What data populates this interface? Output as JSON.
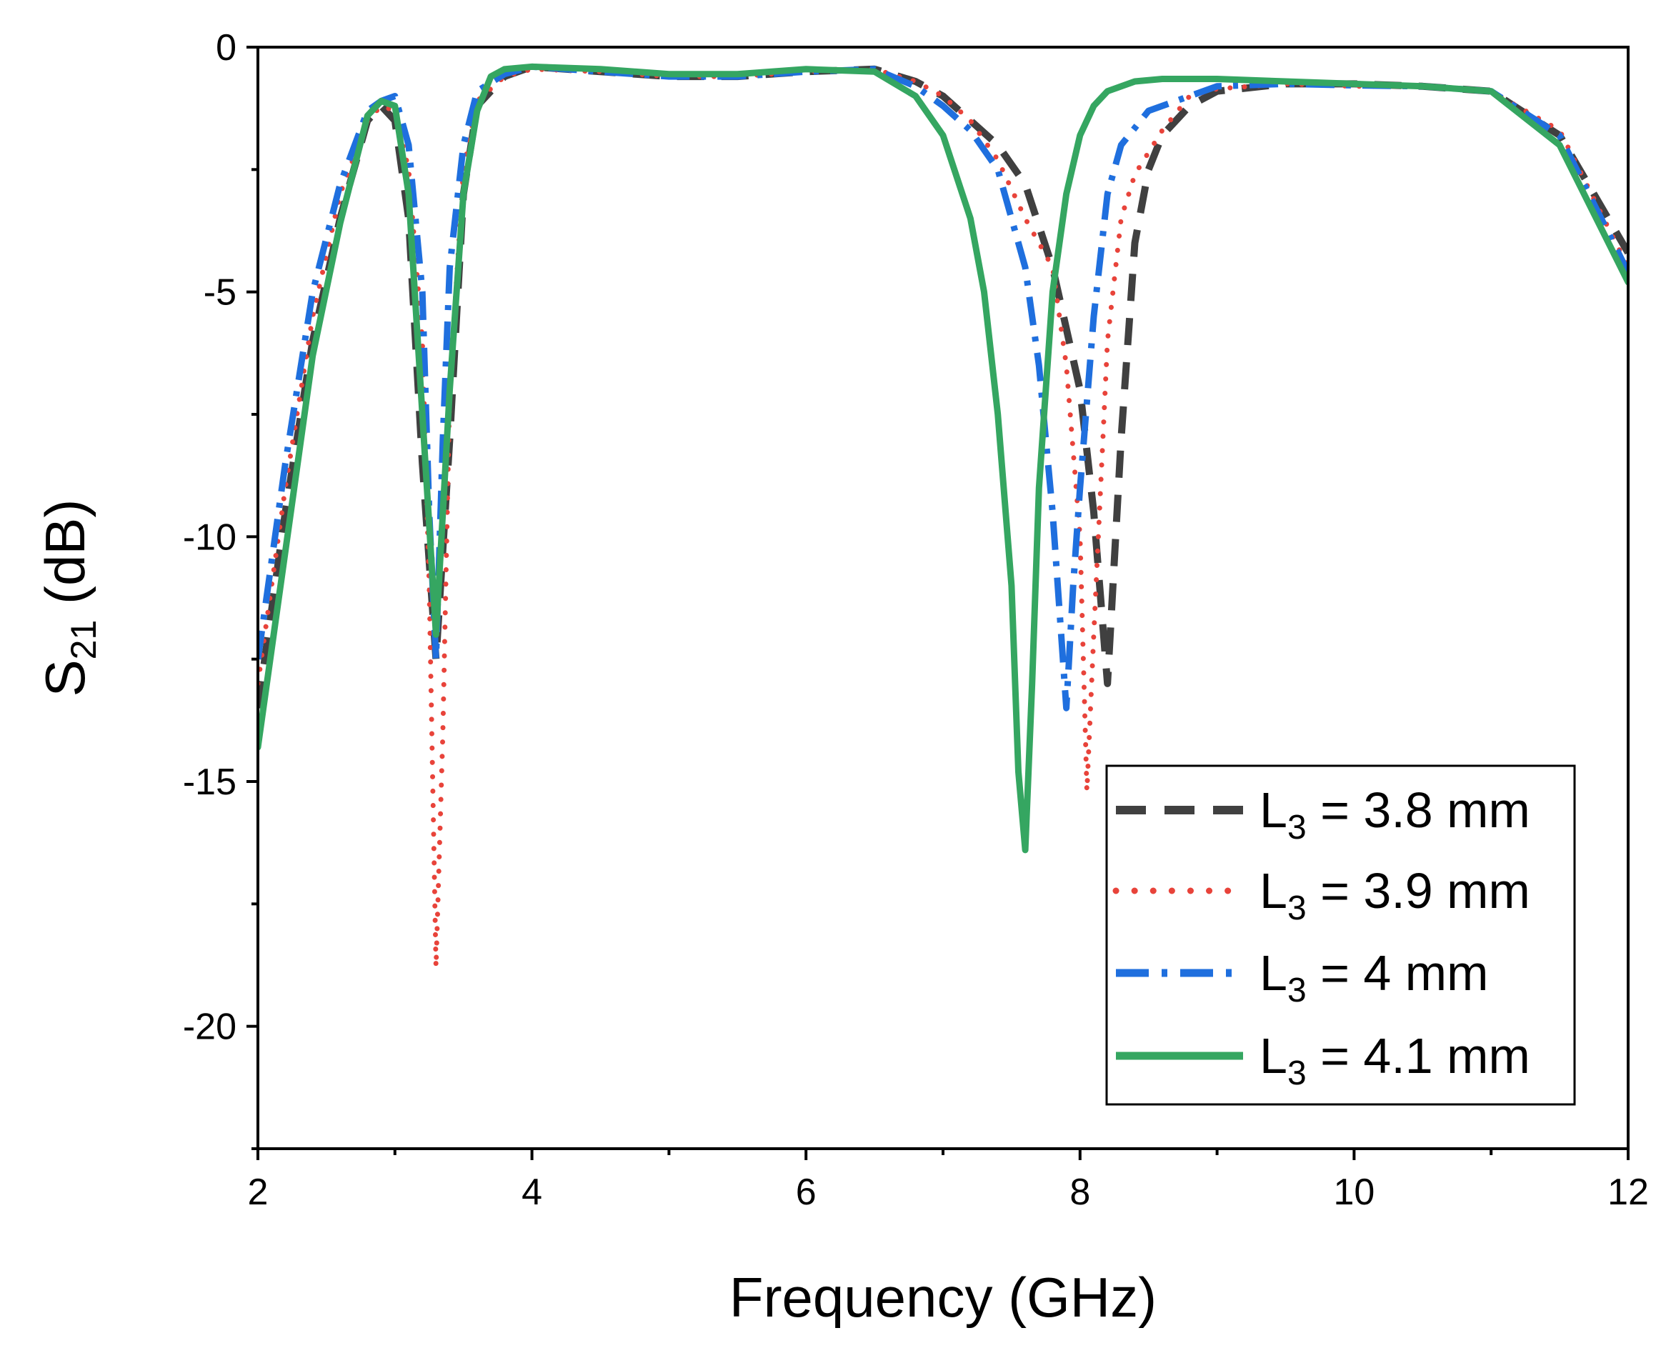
{
  "chart_data": {
    "type": "line",
    "title": "",
    "xlabel": "Frequency (GHz)",
    "ylabel": {
      "main": "S",
      "subscript": "21",
      "suffix": " (dB)"
    },
    "xlim": [
      2,
      12
    ],
    "ylim": [
      -22.5,
      0
    ],
    "x_major_ticks": [
      2,
      4,
      6,
      8,
      10,
      12
    ],
    "x_minor_ticks": [
      3,
      5,
      7,
      9,
      11
    ],
    "y_major_ticks": [
      0,
      -5,
      -10,
      -15,
      -20
    ],
    "y_minor_ticks": [
      -2.5,
      -7.5,
      -12.5,
      -17.5,
      -22.5
    ],
    "x_tick_labels": [
      "2",
      "4",
      "6",
      "8",
      "10",
      "12"
    ],
    "y_tick_labels": [
      "0",
      "-5",
      "-10",
      "-15",
      "-20"
    ],
    "legend_position": "bottom-right",
    "series": [
      {
        "name": "L3 = 3.8 mm",
        "label_parts": {
          "main": "L",
          "subscript": "3",
          "suffix": " = 3.8 mm"
        },
        "color": "#404040",
        "style": "dash",
        "x": [
          2.0,
          2.2,
          2.4,
          2.6,
          2.8,
          2.9,
          3.0,
          3.1,
          3.2,
          3.3,
          3.4,
          3.5,
          3.6,
          3.8,
          4.0,
          4.5,
          5.0,
          5.5,
          6.0,
          6.5,
          6.8,
          7.0,
          7.2,
          7.4,
          7.6,
          7.8,
          8.0,
          8.1,
          8.2,
          8.3,
          8.4,
          8.5,
          8.6,
          8.8,
          9.0,
          9.5,
          10.0,
          10.5,
          11.0,
          11.5,
          12.0
        ],
        "y": [
          -13.5,
          -9.5,
          -6.0,
          -3.5,
          -1.5,
          -1.2,
          -1.5,
          -3.5,
          -8.5,
          -12.5,
          -8.0,
          -3.0,
          -1.2,
          -0.6,
          -0.4,
          -0.5,
          -0.6,
          -0.6,
          -0.5,
          -0.45,
          -0.7,
          -1.0,
          -1.5,
          -2.0,
          -2.8,
          -4.5,
          -7.0,
          -9.5,
          -13.0,
          -8.0,
          -4.0,
          -2.5,
          -1.8,
          -1.2,
          -0.9,
          -0.75,
          -0.75,
          -0.8,
          -0.9,
          -1.8,
          -4.2
        ]
      },
      {
        "name": "L3 = 3.9 mm",
        "label_parts": {
          "main": "L",
          "subscript": "3",
          "suffix": " = 3.9 mm"
        },
        "color": "#e8433a",
        "style": "dot",
        "x": [
          2.0,
          2.2,
          2.4,
          2.6,
          2.8,
          2.9,
          3.0,
          3.1,
          3.2,
          3.25,
          3.3,
          3.35,
          3.4,
          3.5,
          3.6,
          3.8,
          4.0,
          4.5,
          5.0,
          5.5,
          6.0,
          6.5,
          6.8,
          7.0,
          7.2,
          7.4,
          7.6,
          7.8,
          7.9,
          8.0,
          8.05,
          8.1,
          8.2,
          8.3,
          8.4,
          8.6,
          8.8,
          9.0,
          9.5,
          10.0,
          10.5,
          11.0,
          11.5,
          12.0
        ],
        "y": [
          -13.0,
          -9.0,
          -5.5,
          -3.0,
          -1.5,
          -1.2,
          -1.3,
          -2.5,
          -6.0,
          -11.0,
          -18.8,
          -14.0,
          -7.0,
          -2.5,
          -1.1,
          -0.6,
          -0.45,
          -0.5,
          -0.6,
          -0.6,
          -0.5,
          -0.45,
          -0.7,
          -1.0,
          -1.5,
          -2.3,
          -3.5,
          -4.5,
          -6.5,
          -10.0,
          -15.2,
          -12.0,
          -6.0,
          -3.5,
          -2.6,
          -1.7,
          -1.0,
          -0.85,
          -0.75,
          -0.8,
          -0.8,
          -0.9,
          -1.7,
          -4.5
        ]
      },
      {
        "name": "L3 = 4 mm",
        "label_parts": {
          "main": "L",
          "subscript": "3",
          "suffix": " = 4 mm"
        },
        "color": "#1f6fde",
        "style": "dashdot",
        "x": [
          2.0,
          2.2,
          2.4,
          2.6,
          2.8,
          2.9,
          3.0,
          3.1,
          3.2,
          3.25,
          3.3,
          3.35,
          3.4,
          3.5,
          3.6,
          3.8,
          4.0,
          4.5,
          5.0,
          5.5,
          6.0,
          6.5,
          6.8,
          7.0,
          7.2,
          7.4,
          7.5,
          7.6,
          7.7,
          7.8,
          7.9,
          7.95,
          8.0,
          8.1,
          8.2,
          8.3,
          8.5,
          8.8,
          9.0,
          9.5,
          10.0,
          10.5,
          11.0,
          11.5,
          12.0
        ],
        "y": [
          -12.5,
          -8.5,
          -5.0,
          -2.8,
          -1.3,
          -1.1,
          -1.0,
          -2.0,
          -5.0,
          -9.5,
          -12.5,
          -8.0,
          -4.5,
          -2.0,
          -0.9,
          -0.55,
          -0.4,
          -0.5,
          -0.6,
          -0.6,
          -0.5,
          -0.45,
          -0.8,
          -1.2,
          -1.7,
          -2.5,
          -3.5,
          -4.5,
          -6.5,
          -9.5,
          -13.5,
          -11.0,
          -9.0,
          -5.5,
          -3.0,
          -2.0,
          -1.3,
          -1.0,
          -0.8,
          -0.75,
          -0.78,
          -0.8,
          -0.9,
          -1.8,
          -4.6
        ]
      },
      {
        "name": "L3 = 4.1 mm",
        "label_parts": {
          "main": "L",
          "subscript": "3",
          "suffix": " = 4.1 mm"
        },
        "color": "#35a661",
        "style": "solid",
        "x": [
          2.0,
          2.2,
          2.4,
          2.6,
          2.8,
          2.9,
          3.0,
          3.1,
          3.2,
          3.3,
          3.4,
          3.5,
          3.6,
          3.7,
          3.8,
          4.0,
          4.5,
          5.0,
          5.5,
          6.0,
          6.5,
          6.8,
          7.0,
          7.2,
          7.3,
          7.4,
          7.5,
          7.55,
          7.6,
          7.65,
          7.7,
          7.8,
          7.9,
          8.0,
          8.1,
          8.2,
          8.4,
          8.6,
          8.8,
          9.0,
          9.5,
          10.0,
          10.5,
          11.0,
          11.5,
          12.0
        ],
        "y": [
          -14.3,
          -10.3,
          -6.3,
          -3.6,
          -1.4,
          -1.1,
          -1.2,
          -3.0,
          -7.5,
          -12.0,
          -7.0,
          -3.0,
          -1.3,
          -0.6,
          -0.45,
          -0.4,
          -0.45,
          -0.55,
          -0.55,
          -0.45,
          -0.5,
          -1.0,
          -1.8,
          -3.5,
          -5.0,
          -7.5,
          -11.0,
          -14.8,
          -16.4,
          -13.0,
          -9.0,
          -5.0,
          -3.0,
          -1.8,
          -1.2,
          -0.9,
          -0.7,
          -0.65,
          -0.65,
          -0.65,
          -0.7,
          -0.75,
          -0.8,
          -0.9,
          -2.0,
          -4.8
        ]
      }
    ]
  }
}
